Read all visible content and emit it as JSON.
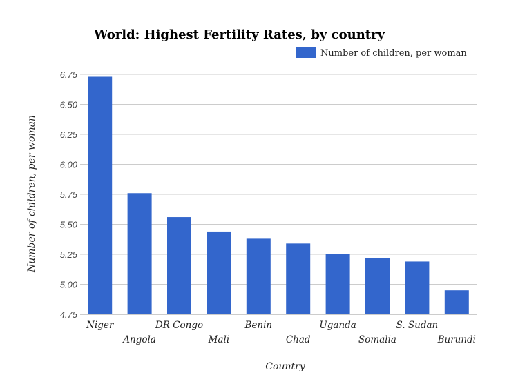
{
  "chart_data": {
    "type": "bar",
    "title": "World: Highest Fertility Rates, by country",
    "xlabel": "Country",
    "ylabel": "Number of children, per woman",
    "categories": [
      "Niger",
      "Angola",
      "DR Congo",
      "Mali",
      "Benin",
      "Chad",
      "Uganda",
      "Somalia",
      "S. Sudan",
      "Burundi"
    ],
    "series": [
      {
        "name": "Number of children, per woman",
        "values": [
          6.73,
          5.76,
          5.56,
          5.44,
          5.38,
          5.34,
          5.25,
          5.22,
          5.19,
          4.95
        ]
      }
    ],
    "ylim": [
      4.75,
      6.75
    ],
    "yticks": [
      "4.75",
      "5.00",
      "5.25",
      "5.50",
      "5.75",
      "6.00",
      "6.25",
      "6.50",
      "6.75"
    ],
    "grid": true,
    "legend_position": "top-right",
    "bar_color": "#3366cc"
  }
}
